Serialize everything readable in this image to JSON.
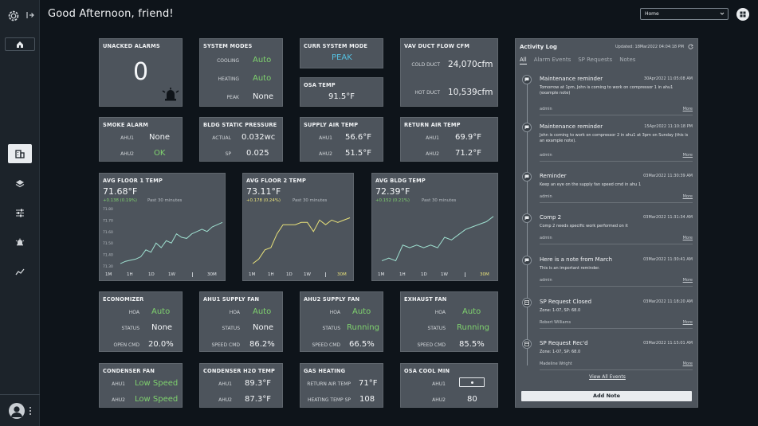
{
  "header": {
    "greeting": "Good Afternoon, friend!",
    "location_select": "Home"
  },
  "sidebar": {
    "items": [
      "building-icon",
      "layers-icon",
      "sliders-icon",
      "alarm-icon",
      "trend-icon"
    ]
  },
  "tiles": {
    "unacked_alarms": {
      "title": "UNACKED ALARMS",
      "value": "0"
    },
    "system_modes": {
      "title": "SYSTEM MODES",
      "rows": [
        {
          "label": "COOLING",
          "value": "Auto"
        },
        {
          "label": "HEATING",
          "value": "Auto"
        },
        {
          "label": "PEAK",
          "value": "None"
        }
      ]
    },
    "curr_system_mode": {
      "title": "CURR SYSTEM MODE",
      "value": "PEAK"
    },
    "osa_temp": {
      "title": "OSA TEMP",
      "value": "91.5°F"
    },
    "vav_duct_flow": {
      "title": "VAV DUCT FLOW CFM",
      "rows": [
        {
          "label": "COLD DUCT",
          "value": "24,070cfm"
        },
        {
          "label": "HOT DUCT",
          "value": "10,539cfm"
        }
      ]
    },
    "smoke_alarm": {
      "title": "SMOKE ALARM",
      "rows": [
        {
          "label": "AHU1",
          "value": "None"
        },
        {
          "label": "AHU2",
          "value": "OK"
        }
      ]
    },
    "bldg_static_pressure": {
      "title": "BLDG STATIC PRESSURE",
      "rows": [
        {
          "label": "ACTUAL",
          "value": "0.032wc"
        },
        {
          "label": "SP",
          "value": "0.025"
        }
      ]
    },
    "supply_air_temp": {
      "title": "SUPPLY AIR TEMP",
      "rows": [
        {
          "label": "AHU1",
          "value": "56.6°F"
        },
        {
          "label": "AHU2",
          "value": "51.5°F"
        }
      ]
    },
    "return_air_temp": {
      "title": "RETURN AIR TEMP",
      "rows": [
        {
          "label": "AHU1",
          "value": "69.9°F"
        },
        {
          "label": "AHU2",
          "value": "71.2°F"
        }
      ]
    },
    "economizer": {
      "title": "ECONOMIZER",
      "rows": [
        {
          "label": "HOA",
          "value": "Auto"
        },
        {
          "label": "STATUS",
          "value": "None"
        },
        {
          "label": "OPEN CMD",
          "value": "20.0%"
        }
      ]
    },
    "ahu1_supply_fan": {
      "title": "AHU1 SUPPLY FAN",
      "rows": [
        {
          "label": "HOA",
          "value": "Auto"
        },
        {
          "label": "STATUS",
          "value": "None"
        },
        {
          "label": "SPEED CMD",
          "value": "86.2%"
        }
      ]
    },
    "ahu2_supply_fan": {
      "title": "AHU2 SUPPLY FAN",
      "rows": [
        {
          "label": "HOA",
          "value": "Auto"
        },
        {
          "label": "STATUS",
          "value": "Running"
        },
        {
          "label": "SPEED CMD",
          "value": "66.5%"
        }
      ]
    },
    "exhaust_fan": {
      "title": "EXHAUST FAN",
      "rows": [
        {
          "label": "HOA",
          "value": "Auto"
        },
        {
          "label": "STATUS",
          "value": "Running"
        },
        {
          "label": "SPEED CMD",
          "value": "85.5%"
        }
      ]
    },
    "condenser_fan": {
      "title": "CONDENSER FAN",
      "rows": [
        {
          "label": "AHU1",
          "value": "Low Speed"
        },
        {
          "label": "AHU2",
          "value": "Low Speed"
        }
      ]
    },
    "condenser_h2o_temp": {
      "title": "CONDENSER H2O TEMP",
      "rows": [
        {
          "label": "AHU1",
          "value": "89.3°F"
        },
        {
          "label": "AHU2",
          "value": "87.3°F"
        }
      ]
    },
    "gas_heating": {
      "title": "GAS HEATING",
      "rows": [
        {
          "label": "RETURN AIR TEMP",
          "value": "71°F"
        },
        {
          "label": "HEATING TEMP SP",
          "value": "108"
        }
      ]
    },
    "osa_cool_min": {
      "title": "OSA COOL MIN",
      "rows": [
        {
          "label": "AHU1",
          "value": ""
        },
        {
          "label": "AHU2",
          "value": "80"
        }
      ]
    }
  },
  "charts": {
    "floor1": {
      "title": "AVG FLOOR 1 TEMP",
      "value": "71.68°F",
      "delta": "+0.138 (0.19%)",
      "past": "Past 30 minutes",
      "ranges": [
        "1M",
        "1H",
        "1D",
        "1W",
        "30M"
      ],
      "selected": "30M",
      "line_color": "#9fe0d0",
      "y_ticks": [
        "71.80",
        "71.70",
        "71.60",
        "71.50",
        "71.40",
        "71.30"
      ]
    },
    "floor2": {
      "title": "AVG FLOOR 2 TEMP",
      "value": "73.11°F",
      "delta": "+0.178 (0.24%)",
      "past": "Past 30 minutes",
      "ranges": [
        "1M",
        "1H",
        "1D",
        "1W",
        "30M"
      ],
      "selected": "30M",
      "line_color": "#e9e27a"
    },
    "bldg": {
      "title": "AVG BLDG TEMP",
      "value": "72.39°F",
      "delta": "+0.152 (0.21%)",
      "past": "Past 30 minutes",
      "ranges": [
        "1M",
        "1H",
        "1D",
        "1W",
        "30M"
      ],
      "selected": "30M",
      "line_color": "#9fe0d0"
    }
  },
  "chart_data": [
    {
      "type": "line",
      "title": "AVG FLOOR 1 TEMP",
      "y_ticks": [
        "71.80",
        "71.70",
        "71.60",
        "71.50",
        "71.40",
        "71.30"
      ],
      "ylim": [
        71.3,
        71.8
      ],
      "values": [
        71.32,
        71.34,
        71.35,
        71.36,
        71.38,
        71.44,
        71.42,
        71.5,
        71.46,
        71.52,
        71.5,
        71.58,
        71.55,
        71.54,
        71.58,
        71.6,
        71.62,
        71.6,
        71.64,
        71.66,
        71.68
      ]
    },
    {
      "type": "line",
      "title": "AVG FLOOR 2 TEMP",
      "ylim": [
        72.9,
        73.15
      ],
      "values": [
        72.91,
        72.93,
        72.97,
        72.98,
        73.04,
        73.08,
        73.08,
        73.08,
        73.09,
        73.09,
        73.05,
        73.1,
        73.08,
        73.1,
        73.09,
        73.1,
        73.11
      ]
    },
    {
      "type": "line",
      "title": "AVG BLDG TEMP",
      "ylim": [
        72.2,
        72.42
      ],
      "values": [
        72.22,
        72.23,
        72.22,
        72.28,
        72.27,
        72.28,
        72.27,
        72.28,
        72.27,
        72.31,
        72.3,
        72.32,
        72.34,
        72.35,
        72.36,
        72.37,
        72.39
      ]
    }
  ],
  "activity": {
    "title": "Activity Log",
    "updated": "Updated: 18Mar2022 04:04:18 PM",
    "tabs": [
      "All",
      "Alarm Events",
      "SP Requests",
      "Notes"
    ],
    "entries": [
      {
        "title": "Maintenance reminder",
        "date": "30Apr2022 11:05:08 AM",
        "body": "Tomorrow at 1pm, John is coming to work on compressor 1 in ahu1 (example note)",
        "author": "admin",
        "more": "More",
        "icon": "note"
      },
      {
        "title": "Maintenance reminder",
        "date": "15Apr2022 11:10:18 PM",
        "body": "John is coming to work on compressor 2 in ahu1 at 3pm on Sunday (this is an example note).",
        "author": "admin",
        "more": "More",
        "icon": "note"
      },
      {
        "title": "Reminder",
        "date": "03Mar2022 11:30:39 AM",
        "body": "Keep an eye on the supply fan speed cmd in ahu 1",
        "author": "admin",
        "more": "More",
        "icon": "note"
      },
      {
        "title": "Comp 2",
        "date": "03Mar2022 11:31:34 AM",
        "body": "Comp 2 needs specific work performed on it",
        "author": "admin",
        "more": "More",
        "icon": "note"
      },
      {
        "title": "Here is a note from March",
        "date": "03Mar2022 11:30:41 AM",
        "body": "This is an important reminder.",
        "author": "admin",
        "more": "More",
        "icon": "note"
      },
      {
        "title": "SP Request Closed",
        "date": "03Mar2022 11:18:20 AM",
        "body": "Zone: 1-07, SP: 68.0",
        "author": "Robert Williams",
        "more": "More",
        "icon": "sp"
      },
      {
        "title": "SP Request Rec'd",
        "date": "03Mar2022 11:15:01 AM",
        "body": "Zone: 1-07, SP: 68.0",
        "author": "Madeline Wright",
        "more": "More",
        "icon": "sp"
      }
    ],
    "view_all": "View All Events",
    "add_note": "Add Note"
  },
  "colors": {
    "background": "#0e141a",
    "tile": "#4d545c",
    "status_green": "#7fd26e",
    "status_blue": "#55c0e0",
    "chart_yellow": "#e9e27a"
  }
}
